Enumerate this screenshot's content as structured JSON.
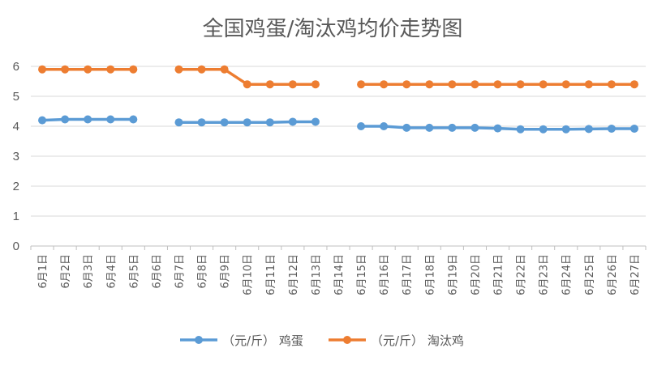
{
  "chart_data": {
    "type": "line",
    "title": "全国鸡蛋/淘汰鸡均价走势图",
    "categories": [
      "6月1日",
      "6月2日",
      "6月3日",
      "6月4日",
      "6月5日",
      "6月6日",
      "6月7日",
      "6月8日",
      "6月9日",
      "6月10日",
      "6月11日",
      "6月12日",
      "6月13日",
      "6月14日",
      "6月15日",
      "6月16日",
      "6月17日",
      "6月18日",
      "6月19日",
      "6月20日",
      "6月21日",
      "6月22日",
      "6月23日",
      "6月24日",
      "6月25日",
      "6月26日",
      "6月27日"
    ],
    "ylim": [
      0,
      6
    ],
    "yticks": [
      "0",
      "1",
      "2",
      "3",
      "4",
      "5",
      "6"
    ],
    "grid": true,
    "legend_position": "bottom",
    "series": [
      {
        "name": "（元/斤） 鸡蛋",
        "color": "#5b9bd5",
        "values": [
          4.2,
          4.23,
          4.23,
          4.23,
          4.23,
          null,
          4.13,
          4.13,
          4.13,
          4.13,
          4.13,
          4.15,
          4.15,
          null,
          4.0,
          4.0,
          3.95,
          3.95,
          3.95,
          3.95,
          3.93,
          3.9,
          3.9,
          3.9,
          3.91,
          3.92,
          3.92
        ]
      },
      {
        "name": "（元/斤） 淘汰鸡",
        "color": "#ed7d31",
        "values": [
          5.9,
          5.9,
          5.9,
          5.9,
          5.9,
          null,
          5.9,
          5.9,
          5.9,
          5.4,
          5.4,
          5.4,
          5.4,
          null,
          5.4,
          5.4,
          5.4,
          5.4,
          5.4,
          5.4,
          5.4,
          5.4,
          5.4,
          5.4,
          5.4,
          5.4,
          5.4
        ]
      }
    ]
  }
}
